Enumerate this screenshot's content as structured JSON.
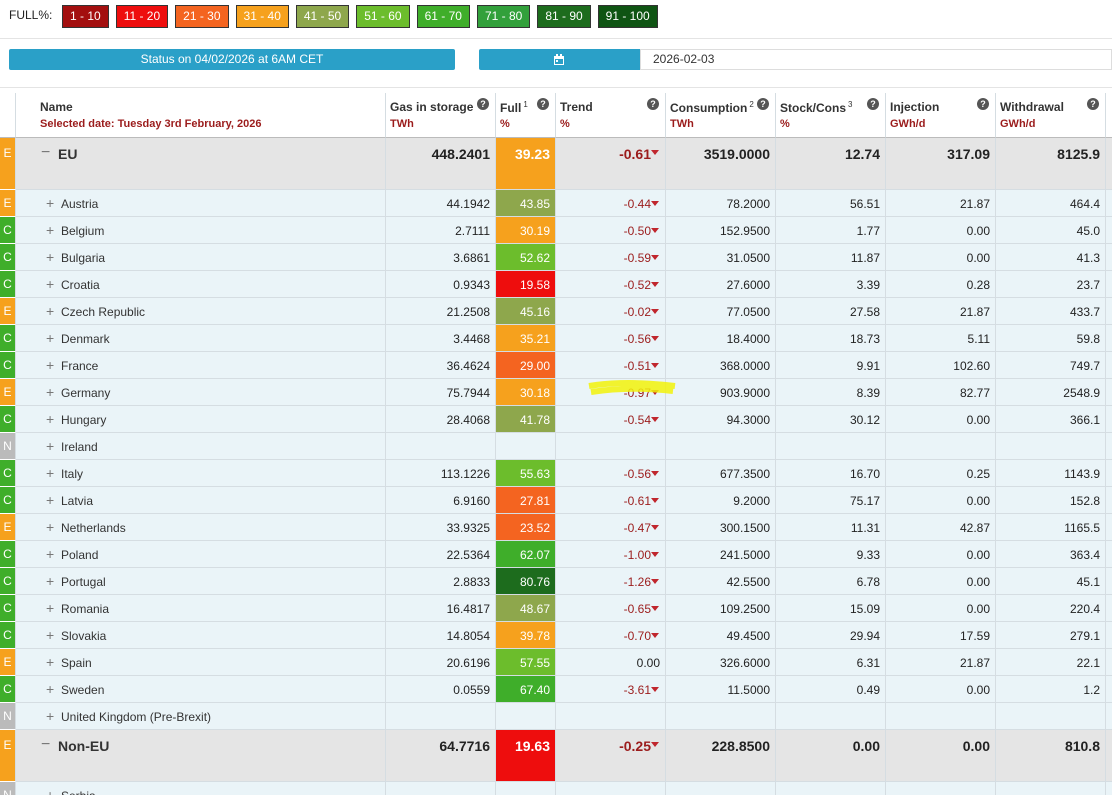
{
  "legend": {
    "label": "FULL%:",
    "ranges": [
      {
        "label": "1 - 10",
        "color": "#a30f0f"
      },
      {
        "label": "11 - 20",
        "color": "#ee0d0d"
      },
      {
        "label": "21 - 30",
        "color": "#f46420"
      },
      {
        "label": "31 - 40",
        "color": "#f6a11d"
      },
      {
        "label": "41 - 50",
        "color": "#8ea74c"
      },
      {
        "label": "51 - 60",
        "color": "#6cbd2c"
      },
      {
        "label": "61 - 70",
        "color": "#3fae2a"
      },
      {
        "label": "71 - 80",
        "color": "#32a03b"
      },
      {
        "label": "81 - 90",
        "color": "#1d6c1d"
      },
      {
        "label": "91 - 100",
        "color": "#0f5413"
      }
    ]
  },
  "status": "Status on 04/02/2026 at 6AM CET",
  "date": "2026-02-03",
  "table": {
    "columns": [
      {
        "title": "Name",
        "unit": "Selected date: Tuesday 3rd February, 2026"
      },
      {
        "title": "Gas in storage",
        "unit": "TWh"
      },
      {
        "title": "Full",
        "sup": "1",
        "unit": "%"
      },
      {
        "title": "Trend",
        "unit": "%"
      },
      {
        "title": "Consumption",
        "sup": "2",
        "unit": "TWh"
      },
      {
        "title": "Stock/Cons",
        "sup": "3",
        "unit": "%"
      },
      {
        "title": "Injection",
        "unit": "GWh/d"
      },
      {
        "title": "Withdrawal",
        "unit": "GWh/d"
      }
    ],
    "rows": [
      {
        "status": "E",
        "name": "EU",
        "group": true,
        "cells": [
          "448.2401",
          "39.23",
          "-0.61",
          "3519.0000",
          "12.74",
          "317.09",
          "8125.9"
        ]
      },
      {
        "status": "E",
        "name": "Austria",
        "cells": [
          "44.1942",
          "43.85",
          "-0.44",
          "78.2000",
          "56.51",
          "21.87",
          "464.4"
        ]
      },
      {
        "status": "C",
        "name": "Belgium",
        "cells": [
          "2.7111",
          "30.19",
          "-0.50",
          "152.9500",
          "1.77",
          "0.00",
          "45.0"
        ]
      },
      {
        "status": "C",
        "name": "Bulgaria",
        "cells": [
          "3.6861",
          "52.62",
          "-0.59",
          "31.0500",
          "11.87",
          "0.00",
          "41.3"
        ]
      },
      {
        "status": "C",
        "name": "Croatia",
        "cells": [
          "0.9343",
          "19.58",
          "-0.52",
          "27.6000",
          "3.39",
          "0.28",
          "23.7"
        ]
      },
      {
        "status": "E",
        "name": "Czech Republic",
        "cells": [
          "21.2508",
          "45.16",
          "-0.02",
          "77.0500",
          "27.58",
          "21.87",
          "433.7"
        ]
      },
      {
        "status": "C",
        "name": "Denmark",
        "cells": [
          "3.4468",
          "35.21",
          "-0.56",
          "18.4000",
          "18.73",
          "5.11",
          "59.8"
        ]
      },
      {
        "status": "C",
        "name": "France",
        "cells": [
          "36.4624",
          "29.00",
          "-0.51",
          "368.0000",
          "9.91",
          "102.60",
          "749.7"
        ]
      },
      {
        "status": "E",
        "name": "Germany",
        "cells": [
          "75.7944",
          "30.18",
          "-0.97",
          "903.9000",
          "8.39",
          "82.77",
          "2548.9"
        ]
      },
      {
        "status": "C",
        "name": "Hungary",
        "cells": [
          "28.4068",
          "41.78",
          "-0.54",
          "94.3000",
          "30.12",
          "0.00",
          "366.1"
        ]
      },
      {
        "status": "N",
        "name": "Ireland"
      },
      {
        "status": "C",
        "name": "Italy",
        "cells": [
          "113.1226",
          "55.63",
          "-0.56",
          "677.3500",
          "16.70",
          "0.25",
          "1143.9"
        ]
      },
      {
        "status": "C",
        "name": "Latvia",
        "cells": [
          "6.9160",
          "27.81",
          "-0.61",
          "9.2000",
          "75.17",
          "0.00",
          "152.8"
        ]
      },
      {
        "status": "E",
        "name": "Netherlands",
        "cells": [
          "33.9325",
          "23.52",
          "-0.47",
          "300.1500",
          "11.31",
          "42.87",
          "1165.5"
        ]
      },
      {
        "status": "C",
        "name": "Poland",
        "cells": [
          "22.5364",
          "62.07",
          "-1.00",
          "241.5000",
          "9.33",
          "0.00",
          "363.4"
        ]
      },
      {
        "status": "C",
        "name": "Portugal",
        "cells": [
          "2.8833",
          "80.76",
          "-1.26",
          "42.5500",
          "6.78",
          "0.00",
          "45.1"
        ]
      },
      {
        "status": "C",
        "name": "Romania",
        "cells": [
          "16.4817",
          "48.67",
          "-0.65",
          "109.2500",
          "15.09",
          "0.00",
          "220.4"
        ]
      },
      {
        "status": "C",
        "name": "Slovakia",
        "cells": [
          "14.8054",
          "39.78",
          "-0.70",
          "49.4500",
          "29.94",
          "17.59",
          "279.1"
        ]
      },
      {
        "status": "E",
        "name": "Spain",
        "cells": [
          "20.6196",
          "57.55",
          "0.00",
          "326.6000",
          "6.31",
          "21.87",
          "22.1"
        ]
      },
      {
        "status": "C",
        "name": "Sweden",
        "cells": [
          "0.0559",
          "67.40",
          "-3.61",
          "11.5000",
          "0.49",
          "0.00",
          "1.2"
        ]
      },
      {
        "status": "N",
        "name": "United Kingdom (Pre-Brexit)"
      },
      {
        "status": "E",
        "name": "Non-EU",
        "group": true,
        "cells": [
          "64.7716",
          "19.63",
          "-0.25",
          "228.8500",
          "0.00",
          "0.00",
          "810.8"
        ]
      },
      {
        "status": "N",
        "name": "Serbia"
      }
    ]
  }
}
